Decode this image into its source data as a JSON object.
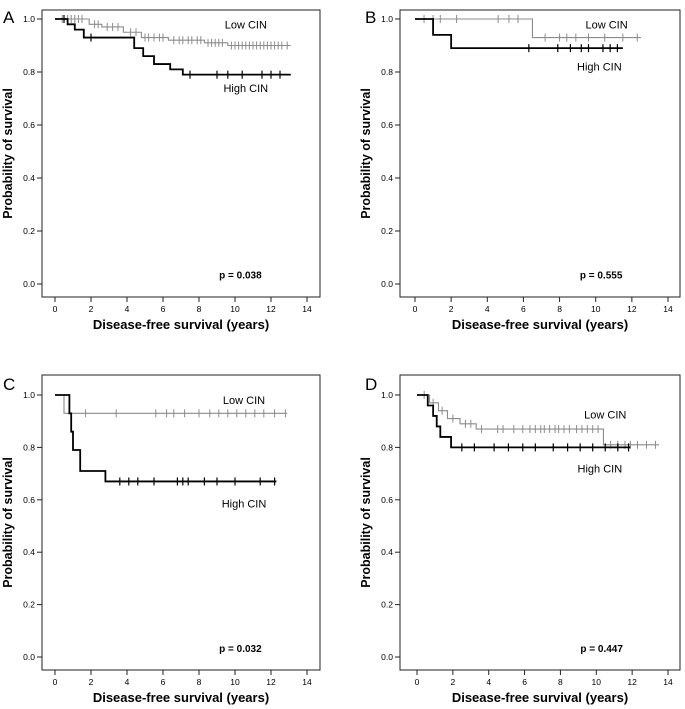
{
  "chart_data": [
    {
      "panel_label": "A",
      "type": "line",
      "subtype": "kaplan-meier",
      "xlabel": "Disease-free survival (years)",
      "ylabel": "Probability of survival",
      "xlim": [
        0,
        14
      ],
      "ylim": [
        0,
        1
      ],
      "xticks": [
        "0",
        "2",
        "4",
        "6",
        "8",
        "10",
        "12",
        "14"
      ],
      "yticks": [
        "0.0",
        "0.2",
        "0.4",
        "0.6",
        "0.8",
        "1.0"
      ],
      "p_value": "p = 0.038",
      "series": [
        {
          "name": "Low CIN",
          "style": "thin-gray",
          "steps": [
            [
              0,
              1.0
            ],
            [
              1.9,
              0.98
            ],
            [
              2.6,
              0.97
            ],
            [
              3.8,
              0.95
            ],
            [
              4.8,
              0.93
            ],
            [
              6.3,
              0.92
            ],
            [
              8.3,
              0.91
            ],
            [
              9.6,
              0.9
            ],
            [
              13.1,
              0.9
            ]
          ],
          "censors": [
            0.4,
            0.7,
            0.9,
            1.1,
            1.3,
            1.5,
            2.2,
            2.4,
            2.9,
            3.2,
            3.5,
            4.2,
            4.5,
            5.0,
            5.2,
            5.5,
            5.8,
            6.0,
            6.6,
            6.9,
            7.1,
            7.4,
            7.6,
            7.9,
            8.1,
            8.5,
            8.7,
            8.9,
            9.1,
            9.3,
            9.8,
            10.0,
            10.2,
            10.4,
            10.6,
            10.8,
            11.0,
            11.2,
            11.4,
            11.6,
            11.8,
            12.0,
            12.2,
            12.4,
            12.6,
            12.9
          ]
        },
        {
          "name": "High CIN",
          "style": "thick-black",
          "steps": [
            [
              0,
              1.0
            ],
            [
              0.7,
              0.98
            ],
            [
              1.1,
              0.96
            ],
            [
              1.6,
              0.93
            ],
            [
              4.4,
              0.89
            ],
            [
              4.9,
              0.86
            ],
            [
              5.5,
              0.83
            ],
            [
              6.4,
              0.81
            ],
            [
              7.1,
              0.79
            ],
            [
              13.1,
              0.79
            ]
          ],
          "censors": [
            0.5,
            2.0,
            7.5,
            9.0,
            9.6,
            10.4,
            11.5,
            12.0,
            12.5
          ]
        }
      ],
      "annotations": [
        {
          "text": "Low CIN",
          "x": 10.6,
          "y": 0.98
        },
        {
          "text": "High CIN",
          "x": 10.6,
          "y": 0.74
        },
        {
          "text": "p = 0.038",
          "x": 10.3,
          "y": 0.035
        }
      ]
    },
    {
      "panel_label": "B",
      "type": "line",
      "subtype": "kaplan-meier",
      "xlabel": "Disease-free survival (years)",
      "ylabel": "Probability of survival",
      "xlim": [
        0,
        14
      ],
      "ylim": [
        0,
        1
      ],
      "xticks": [
        "0",
        "2",
        "4",
        "6",
        "8",
        "10",
        "12",
        "14"
      ],
      "yticks": [
        "0.0",
        "0.2",
        "0.4",
        "0.6",
        "0.8",
        "1.0"
      ],
      "p_value": "p = 0.555",
      "series": [
        {
          "name": "Low CIN",
          "style": "thin-gray",
          "steps": [
            [
              0,
              1.0
            ],
            [
              6.5,
              0.93
            ],
            [
              12.5,
              0.93
            ]
          ],
          "censors": [
            0.5,
            1.0,
            1.4,
            2.3,
            4.6,
            5.2,
            5.7,
            7.2,
            8.0,
            8.4,
            8.9,
            9.6,
            10.5,
            11.5,
            12.3
          ]
        },
        {
          "name": "High CIN",
          "style": "thick-black",
          "steps": [
            [
              0,
              1.0
            ],
            [
              1.0,
              0.94
            ],
            [
              2.0,
              0.89
            ],
            [
              11.5,
              0.89
            ]
          ],
          "censors": [
            6.3,
            7.9,
            8.6,
            9.2,
            9.6,
            10.4,
            10.8,
            11.2
          ]
        }
      ],
      "annotations": [
        {
          "text": "Low CIN",
          "x": 10.6,
          "y": 0.98
        },
        {
          "text": "High CIN",
          "x": 10.2,
          "y": 0.82
        },
        {
          "text": "p = 0.555",
          "x": 10.3,
          "y": 0.035
        }
      ]
    },
    {
      "panel_label": "C",
      "type": "line",
      "subtype": "kaplan-meier",
      "xlabel": "Disease-free survival (years)",
      "ylabel": "Probability of survival",
      "xlim": [
        0,
        14
      ],
      "ylim": [
        0,
        1
      ],
      "xticks": [
        "0",
        "2",
        "4",
        "6",
        "8",
        "10",
        "12",
        "14"
      ],
      "yticks": [
        "0.0",
        "0.2",
        "0.4",
        "0.6",
        "0.8",
        "1.0"
      ],
      "p_value": "p = 0.032",
      "series": [
        {
          "name": "Low CIN",
          "style": "thin-gray",
          "steps": [
            [
              0,
              1.0
            ],
            [
              0.5,
              0.93
            ],
            [
              12.9,
              0.93
            ]
          ],
          "censors": [
            1.7,
            3.4,
            5.6,
            6.2,
            6.6,
            7.2,
            8.0,
            8.6,
            9.1,
            9.6,
            10.1,
            10.6,
            11.1,
            11.6,
            12.2,
            12.8
          ]
        },
        {
          "name": "High CIN",
          "style": "thick-black",
          "steps": [
            [
              0,
              1.0
            ],
            [
              0.8,
              0.93
            ],
            [
              0.9,
              0.86
            ],
            [
              1.0,
              0.79
            ],
            [
              1.4,
              0.71
            ],
            [
              2.8,
              0.67
            ],
            [
              12.3,
              0.67
            ]
          ],
          "censors": [
            3.6,
            4.1,
            4.6,
            5.5,
            6.8,
            7.1,
            7.4,
            8.3,
            9.0,
            10.0,
            11.4,
            12.2
          ]
        }
      ],
      "annotations": [
        {
          "text": "Low CIN",
          "x": 10.5,
          "y": 0.98
        },
        {
          "text": "High CIN",
          "x": 10.5,
          "y": 0.585
        },
        {
          "text": "p = 0.032",
          "x": 10.3,
          "y": 0.035
        }
      ]
    },
    {
      "panel_label": "D",
      "type": "line",
      "subtype": "kaplan-meier",
      "xlabel": "Disease-free survival (years)",
      "ylabel": "Probability of survival",
      "xlim": [
        0,
        14
      ],
      "ylim": [
        0,
        1
      ],
      "xticks": [
        "0",
        "2",
        "4",
        "6",
        "8",
        "10",
        "12",
        "14"
      ],
      "yticks": [
        "0.0",
        "0.2",
        "0.4",
        "0.6",
        "0.8",
        "1.0"
      ],
      "p_value": "p = 0.447",
      "series": [
        {
          "name": "Low CIN",
          "style": "thin-gray",
          "steps": [
            [
              0,
              1.0
            ],
            [
              0.7,
              0.97
            ],
            [
              1.2,
              0.94
            ],
            [
              1.7,
              0.91
            ],
            [
              2.4,
              0.89
            ],
            [
              3.3,
              0.87
            ],
            [
              10.4,
              0.81
            ],
            [
              13.5,
              0.81
            ]
          ],
          "censors": [
            0.4,
            0.9,
            1.4,
            2.0,
            2.7,
            3.0,
            3.6,
            4.5,
            4.8,
            5.4,
            5.9,
            6.3,
            6.6,
            6.9,
            7.1,
            7.4,
            7.7,
            7.9,
            8.2,
            8.5,
            8.9,
            9.2,
            9.5,
            9.8,
            10.1,
            10.8,
            11.2,
            11.6,
            11.9,
            12.3,
            12.8,
            13.3
          ]
        },
        {
          "name": "High CIN",
          "style": "thick-black",
          "steps": [
            [
              0,
              1.0
            ],
            [
              0.6,
              0.96
            ],
            [
              0.9,
              0.92
            ],
            [
              1.1,
              0.88
            ],
            [
              1.3,
              0.84
            ],
            [
              1.9,
              0.8
            ],
            [
              11.9,
              0.8
            ]
          ],
          "censors": [
            2.5,
            3.2,
            4.3,
            5.1,
            5.9,
            6.6,
            7.6,
            8.4,
            9.1,
            9.8,
            10.5,
            11.2,
            11.8
          ]
        }
      ],
      "annotations": [
        {
          "text": "Low CIN",
          "x": 10.5,
          "y": 0.925
        },
        {
          "text": "High CIN",
          "x": 10.2,
          "y": 0.72
        },
        {
          "text": "p = 0.447",
          "x": 10.3,
          "y": 0.035
        }
      ]
    }
  ]
}
